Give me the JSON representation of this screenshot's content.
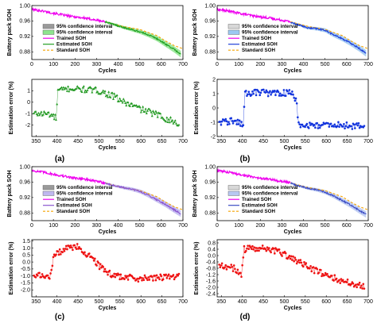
{
  "colors": {
    "trained": "#ee00ee",
    "standard": "#f5a300",
    "ci_fill_a": "#9a9a9a",
    "ci_fill_b": "#d8d8d8",
    "estimated_a": "#22a022",
    "estimated_b": "#1f3fd8",
    "estimated_c": "#8a55d0",
    "estimated_d": "#3d4cc4",
    "error_a": "#229922",
    "error_b": "#1133dd",
    "error_c": "#ee1111",
    "error_d": "#ee1111",
    "ci2_a": "#8ee48e",
    "ci2_b": "#9cc8f2",
    "ci2_c": "#c0b8f0",
    "ci2_d": "#b7c8f2"
  },
  "legend": {
    "ci_gray": "95% confidence interval",
    "ci_color": "95% confidence interval",
    "trained": "Trained SOH",
    "estimated": "Estimated SOH",
    "standard": "Standard SOH"
  },
  "chart_data": [
    {
      "panel": "(a)",
      "soh": {
        "type": "line",
        "ylabel": "Battery pack SOH",
        "xlabel": "Cycles",
        "xlim": [
          0,
          700
        ],
        "ylim": [
          0.86,
          1.0
        ],
        "xticks": [
          0,
          100,
          200,
          300,
          400,
          500,
          600,
          700
        ],
        "yticks": [
          0.88,
          0.92,
          0.96,
          1.0
        ],
        "ytick_labels": [
          "0.88",
          "0.92",
          "0.96",
          "1.00"
        ],
        "trained_points": [
          [
            0,
            0.99
          ],
          [
            60,
            0.985
          ],
          [
            120,
            0.978
          ],
          [
            180,
            0.972
          ],
          [
            240,
            0.968
          ],
          [
            300,
            0.962
          ],
          [
            340,
            0.958
          ]
        ],
        "standard_points": [
          [
            340,
            0.958
          ],
          [
            380,
            0.952
          ],
          [
            420,
            0.946
          ],
          [
            460,
            0.942
          ],
          [
            500,
            0.938
          ],
          [
            540,
            0.93
          ],
          [
            580,
            0.922
          ],
          [
            620,
            0.908
          ],
          [
            660,
            0.896
          ],
          [
            700,
            0.888
          ]
        ],
        "estimated_points": [
          [
            340,
            0.958
          ],
          [
            380,
            0.951
          ],
          [
            420,
            0.944
          ],
          [
            460,
            0.938
          ],
          [
            500,
            0.932
          ],
          [
            540,
            0.924
          ],
          [
            580,
            0.914
          ],
          [
            620,
            0.9
          ],
          [
            660,
            0.886
          ],
          [
            690,
            0.874
          ]
        ]
      },
      "error": {
        "type": "scatter",
        "ylabel": "Estimation error (%)",
        "xlabel": "Cycles",
        "xlim": [
          340,
          700
        ],
        "ylim": [
          -3,
          2
        ],
        "xticks": [
          350,
          400,
          450,
          500,
          550,
          600,
          650,
          700
        ],
        "yticks": [
          -2,
          -1,
          0,
          1
        ],
        "ytick_labels": [
          "-2",
          "-1",
          "0",
          "1"
        ],
        "trend": [
          [
            345,
            -1.0
          ],
          [
            380,
            -1.0
          ],
          [
            398,
            -1.4
          ],
          [
            402,
            1.0
          ],
          [
            430,
            1.2
          ],
          [
            470,
            1.1
          ],
          [
            500,
            1.0
          ],
          [
            530,
            0.6
          ],
          [
            560,
            0.0
          ],
          [
            600,
            -0.6
          ],
          [
            640,
            -1.1
          ],
          [
            690,
            -1.9
          ]
        ]
      }
    },
    {
      "panel": "(b)",
      "soh": {
        "type": "line",
        "ylabel": "Battery pack SOH",
        "xlabel": "Cycles",
        "xlim": [
          0,
          700
        ],
        "ylim": [
          0.86,
          1.0
        ],
        "xticks": [
          0,
          100,
          200,
          300,
          400,
          500,
          600,
          700
        ],
        "yticks": [
          0.88,
          0.92,
          0.96,
          1.0
        ],
        "ytick_labels": [
          "0.88",
          "0.92",
          "0.96",
          "1.00"
        ],
        "trained_points": [
          [
            0,
            0.99
          ],
          [
            60,
            0.985
          ],
          [
            120,
            0.978
          ],
          [
            180,
            0.972
          ],
          [
            240,
            0.968
          ],
          [
            300,
            0.962
          ],
          [
            340,
            0.958
          ]
        ],
        "standard_points": [
          [
            340,
            0.958
          ],
          [
            380,
            0.952
          ],
          [
            420,
            0.946
          ],
          [
            460,
            0.942
          ],
          [
            500,
            0.938
          ],
          [
            540,
            0.93
          ],
          [
            580,
            0.922
          ],
          [
            620,
            0.908
          ],
          [
            660,
            0.896
          ],
          [
            700,
            0.888
          ]
        ],
        "estimated_points": [
          [
            340,
            0.956
          ],
          [
            380,
            0.95
          ],
          [
            420,
            0.942
          ],
          [
            460,
            0.94
          ],
          [
            500,
            0.936
          ],
          [
            540,
            0.924
          ],
          [
            580,
            0.914
          ],
          [
            620,
            0.902
          ],
          [
            660,
            0.888
          ],
          [
            690,
            0.876
          ]
        ]
      },
      "error": {
        "type": "scatter",
        "ylabel": "Estimation error (%)",
        "xlabel": "Cycles",
        "xlim": [
          340,
          700
        ],
        "ylim": [
          -2,
          2
        ],
        "xticks": [
          350,
          400,
          450,
          500,
          550,
          600,
          650,
          700
        ],
        "yticks": [
          -2,
          -1,
          0,
          1,
          2
        ],
        "ytick_labels": [
          "-2",
          "-1",
          "0",
          "1",
          "2"
        ],
        "trend": [
          [
            345,
            -1.0
          ],
          [
            380,
            -0.9
          ],
          [
            402,
            -1.2
          ],
          [
            406,
            1.0
          ],
          [
            440,
            1.1
          ],
          [
            480,
            1.0
          ],
          [
            515,
            1.1
          ],
          [
            528,
            0.6
          ],
          [
            535,
            -1.3
          ],
          [
            580,
            -1.2
          ],
          [
            630,
            -1.2
          ],
          [
            690,
            -1.3
          ]
        ]
      }
    },
    {
      "panel": "(c)",
      "soh": {
        "type": "line",
        "ylabel": "Battery pack SOH",
        "xlabel": "Cycles",
        "xlim": [
          0,
          700
        ],
        "ylim": [
          0.86,
          1.0
        ],
        "xticks": [
          0,
          100,
          200,
          300,
          400,
          500,
          600,
          700
        ],
        "yticks": [
          0.88,
          0.92,
          0.96,
          1.0
        ],
        "ytick_labels": [
          "0.88",
          "0.92",
          "0.96",
          "1.00"
        ],
        "trained_points": [
          [
            0,
            0.99
          ],
          [
            60,
            0.985
          ],
          [
            120,
            0.978
          ],
          [
            180,
            0.972
          ],
          [
            240,
            0.968
          ],
          [
            300,
            0.962
          ],
          [
            340,
            0.958
          ]
        ],
        "standard_points": [
          [
            340,
            0.958
          ],
          [
            380,
            0.952
          ],
          [
            420,
            0.946
          ],
          [
            460,
            0.942
          ],
          [
            500,
            0.938
          ],
          [
            540,
            0.93
          ],
          [
            580,
            0.922
          ],
          [
            620,
            0.908
          ],
          [
            660,
            0.896
          ],
          [
            700,
            0.888
          ]
        ],
        "estimated_points": [
          [
            340,
            0.957
          ],
          [
            380,
            0.951
          ],
          [
            420,
            0.946
          ],
          [
            460,
            0.942
          ],
          [
            500,
            0.936
          ],
          [
            540,
            0.926
          ],
          [
            580,
            0.914
          ],
          [
            620,
            0.902
          ],
          [
            660,
            0.888
          ],
          [
            690,
            0.878
          ]
        ]
      },
      "error": {
        "type": "scatter",
        "ylabel": "Estimation error (%)",
        "xlabel": "Cycles",
        "xlim": [
          340,
          700
        ],
        "ylim": [
          -2.5,
          1.6
        ],
        "xticks": [
          350,
          400,
          450,
          500,
          550,
          600,
          650,
          700
        ],
        "yticks": [
          -2.0,
          -1.5,
          -1.0,
          -0.5,
          0.0,
          0.5,
          1.0,
          1.5
        ],
        "ytick_labels": [
          "-2.0",
          "-1.5",
          "-1.0",
          "-0.5",
          "0.0",
          "0.5",
          "1.0",
          "1.5"
        ],
        "trend": [
          [
            345,
            -1.0
          ],
          [
            385,
            -1.0
          ],
          [
            392,
            0.4
          ],
          [
            420,
            1.0
          ],
          [
            450,
            1.1
          ],
          [
            480,
            0.3
          ],
          [
            520,
            -0.8
          ],
          [
            560,
            -1.1
          ],
          [
            600,
            -1.2
          ],
          [
            650,
            -1.1
          ],
          [
            690,
            -1.0
          ]
        ]
      }
    },
    {
      "panel": "(d)",
      "soh": {
        "type": "line",
        "ylabel": "Battery pack SOH",
        "xlabel": "Cycles",
        "xlim": [
          0,
          700
        ],
        "ylim": [
          0.86,
          1.0
        ],
        "xticks": [
          0,
          100,
          200,
          300,
          400,
          500,
          600,
          700
        ],
        "yticks": [
          0.88,
          0.92,
          0.96,
          1.0
        ],
        "ytick_labels": [
          "0.88",
          "0.92",
          "0.96",
          "1.00"
        ],
        "trained_points": [
          [
            0,
            0.99
          ],
          [
            60,
            0.985
          ],
          [
            120,
            0.978
          ],
          [
            180,
            0.972
          ],
          [
            240,
            0.968
          ],
          [
            300,
            0.962
          ],
          [
            340,
            0.958
          ]
        ],
        "standard_points": [
          [
            340,
            0.958
          ],
          [
            380,
            0.952
          ],
          [
            420,
            0.946
          ],
          [
            460,
            0.942
          ],
          [
            500,
            0.938
          ],
          [
            540,
            0.93
          ],
          [
            580,
            0.922
          ],
          [
            620,
            0.908
          ],
          [
            660,
            0.896
          ],
          [
            700,
            0.888
          ]
        ],
        "estimated_points": [
          [
            340,
            0.957
          ],
          [
            380,
            0.95
          ],
          [
            420,
            0.944
          ],
          [
            460,
            0.94
          ],
          [
            500,
            0.934
          ],
          [
            540,
            0.924
          ],
          [
            580,
            0.912
          ],
          [
            620,
            0.9
          ],
          [
            660,
            0.886
          ],
          [
            690,
            0.876
          ]
        ]
      },
      "error": {
        "type": "scatter",
        "ylabel": "Estimation error (%)",
        "xlabel": "Cycles",
        "xlim": [
          340,
          700
        ],
        "ylim": [
          -2.6,
          1.0
        ],
        "xticks": [
          350,
          400,
          450,
          500,
          550,
          600,
          650,
          700
        ],
        "yticks": [
          -2.4,
          -2.0,
          -1.6,
          -1.2,
          -0.8,
          -0.4,
          0.0,
          0.4,
          0.8
        ],
        "ytick_labels": [
          "-2.4",
          "-2.0",
          "-1.6",
          "-1.2",
          "-0.8",
          "-0.4",
          "0.0",
          "0.4",
          "0.8"
        ],
        "trend": [
          [
            345,
            -0.6
          ],
          [
            380,
            -0.8
          ],
          [
            398,
            -1.2
          ],
          [
            404,
            0.4
          ],
          [
            440,
            0.5
          ],
          [
            480,
            0.3
          ],
          [
            520,
            -0.2
          ],
          [
            560,
            -0.8
          ],
          [
            600,
            -1.2
          ],
          [
            640,
            -1.6
          ],
          [
            690,
            -1.9
          ]
        ]
      }
    }
  ]
}
